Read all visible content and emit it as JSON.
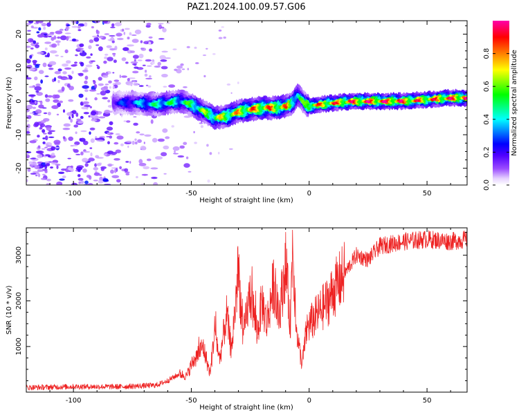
{
  "title": "PAZ1.2024.100.09.57.G06",
  "colors": {
    "axis": "#000000",
    "snr_line": "#ee2222",
    "colormap": [
      "#ffffff",
      "#e6d2ff",
      "#b070ff",
      "#7000ff",
      "#0000ff",
      "#00ffff",
      "#00ff00",
      "#ffff00",
      "#ff7f00",
      "#ff0000",
      "#ff00aa"
    ]
  },
  "chart_data": [
    {
      "type": "heatmap",
      "xlabel": "Height of straight line (km)",
      "ylabel": "Frequency (Hz)",
      "xlim": [
        -120,
        67
      ],
      "ylim": [
        -25,
        24
      ],
      "x_ticks": [
        -100,
        -50,
        0,
        50
      ],
      "y_ticks": [
        -20,
        -10,
        0,
        10,
        20
      ],
      "colorbar": {
        "label": "Normalized spectral amplitude",
        "range": [
          0,
          1
        ],
        "ticks": [
          "0.0",
          "0.2",
          "0.4",
          "0.6",
          "0.8"
        ]
      },
      "ridge": {
        "x": [
          -83,
          -75,
          -70,
          -65,
          -60,
          -55,
          -50,
          -45,
          -40,
          -35,
          -30,
          -25,
          -20,
          -15,
          -10,
          -7,
          -5,
          -2,
          0,
          10,
          20,
          30,
          40,
          50,
          60,
          67
        ],
        "freq": [
          -0.5,
          -0.5,
          -0.7,
          -1,
          -0.5,
          0,
          -1,
          -3,
          -5,
          -4.5,
          -3,
          -2.5,
          -2,
          -2,
          -1.5,
          -0.5,
          2,
          -0.5,
          -1.5,
          -0.5,
          0,
          0,
          0,
          0.5,
          1,
          1
        ],
        "amplitude": [
          0.25,
          0.35,
          0.45,
          0.5,
          0.55,
          0.5,
          0.6,
          0.65,
          0.7,
          0.75,
          0.8,
          0.85,
          0.9,
          0.85,
          0.85,
          0.6,
          0.55,
          0.6,
          0.85,
          0.9,
          0.95,
          1.0,
          0.95,
          0.9,
          0.95,
          1.0
        ]
      }
    },
    {
      "type": "line",
      "xlabel": "Height of straight line (km)",
      "ylabel": "SNR (10 * v/v)",
      "xlim": [
        -120,
        67
      ],
      "ylim": [
        0,
        3600
      ],
      "x_ticks": [
        -100,
        -50,
        0,
        50
      ],
      "y_ticks": [
        1000,
        2000,
        3000
      ],
      "series": [
        {
          "x": [
            -120,
            -100,
            -80,
            -65,
            -60,
            -55,
            -52,
            -50,
            -45,
            -42,
            -40,
            -38,
            -35,
            -33,
            -30,
            -28,
            -25,
            -22,
            -20,
            -18,
            -15,
            -13,
            -10,
            -8,
            -7,
            -6,
            -5,
            -3,
            -1,
            2,
            5,
            8,
            10,
            15,
            20,
            25,
            30,
            35,
            40,
            50,
            60,
            67
          ],
          "y": [
            100,
            120,
            120,
            150,
            250,
            400,
            350,
            600,
            1000,
            400,
            1400,
            700,
            1700,
            900,
            2700,
            1200,
            2200,
            1300,
            2000,
            1500,
            2400,
            1600,
            2800,
            1500,
            3300,
            2100,
            1200,
            600,
            1400,
            1600,
            1800,
            2000,
            2200,
            2600,
            3000,
            2900,
            3200,
            3250,
            3300,
            3350,
            3300,
            3350
          ]
        }
      ]
    }
  ]
}
